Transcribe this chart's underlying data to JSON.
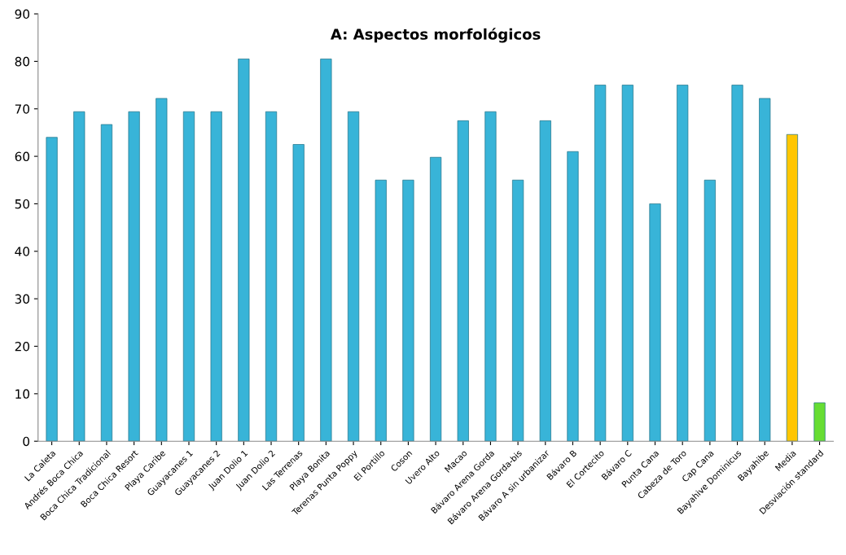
{
  "chart_data": {
    "type": "bar",
    "title": "A: Aspectos morfológicos",
    "categories": [
      "La Caleta",
      "Andrés Boca Chica",
      "Boca Chica Tradicional",
      "Boca Chica Resort",
      "Playa Caribe",
      "Guayacanes 1",
      "Guayacanes 2",
      "Juan Dolio 1",
      "Juan Dolio 2",
      "Las Terrenas",
      "Playa Bonita",
      "Terenas Punta Poppy",
      "El Portillo",
      "Coson",
      "Uvero Alto",
      "Macao",
      "Bávaro Arena Gorda",
      "Bávaro Arena Gorda-bis",
      "Bávaro A sin urbanizar",
      "Bávaro B",
      "El Cortecito",
      "Bávaro C",
      "Punta Cana",
      "Cabeza de Toro",
      "Cap Cana",
      "Bayahive Dominicus",
      "Bayahibe",
      "Media",
      "Desviación standard"
    ],
    "values": [
      64,
      69.4,
      66.7,
      69.4,
      72.2,
      69.4,
      69.4,
      80.5,
      69.4,
      62.5,
      80.5,
      69.4,
      55,
      55,
      59.8,
      67.5,
      69.4,
      55,
      67.5,
      61,
      75,
      75,
      50,
      75,
      55,
      75,
      72.2,
      64.6,
      8.1
    ],
    "colors": [
      "#38b4d8",
      "#38b4d8",
      "#38b4d8",
      "#38b4d8",
      "#38b4d8",
      "#38b4d8",
      "#38b4d8",
      "#38b4d8",
      "#38b4d8",
      "#38b4d8",
      "#38b4d8",
      "#38b4d8",
      "#38b4d8",
      "#38b4d8",
      "#38b4d8",
      "#38b4d8",
      "#38b4d8",
      "#38b4d8",
      "#38b4d8",
      "#38b4d8",
      "#38b4d8",
      "#38b4d8",
      "#38b4d8",
      "#38b4d8",
      "#38b4d8",
      "#38b4d8",
      "#38b4d8",
      "#ffc600",
      "#66dd33"
    ],
    "ylim": [
      0,
      90
    ],
    "yticks": [
      0,
      10,
      20,
      30,
      40,
      50,
      60,
      70,
      80,
      90
    ],
    "grid": false,
    "legend": false
  }
}
